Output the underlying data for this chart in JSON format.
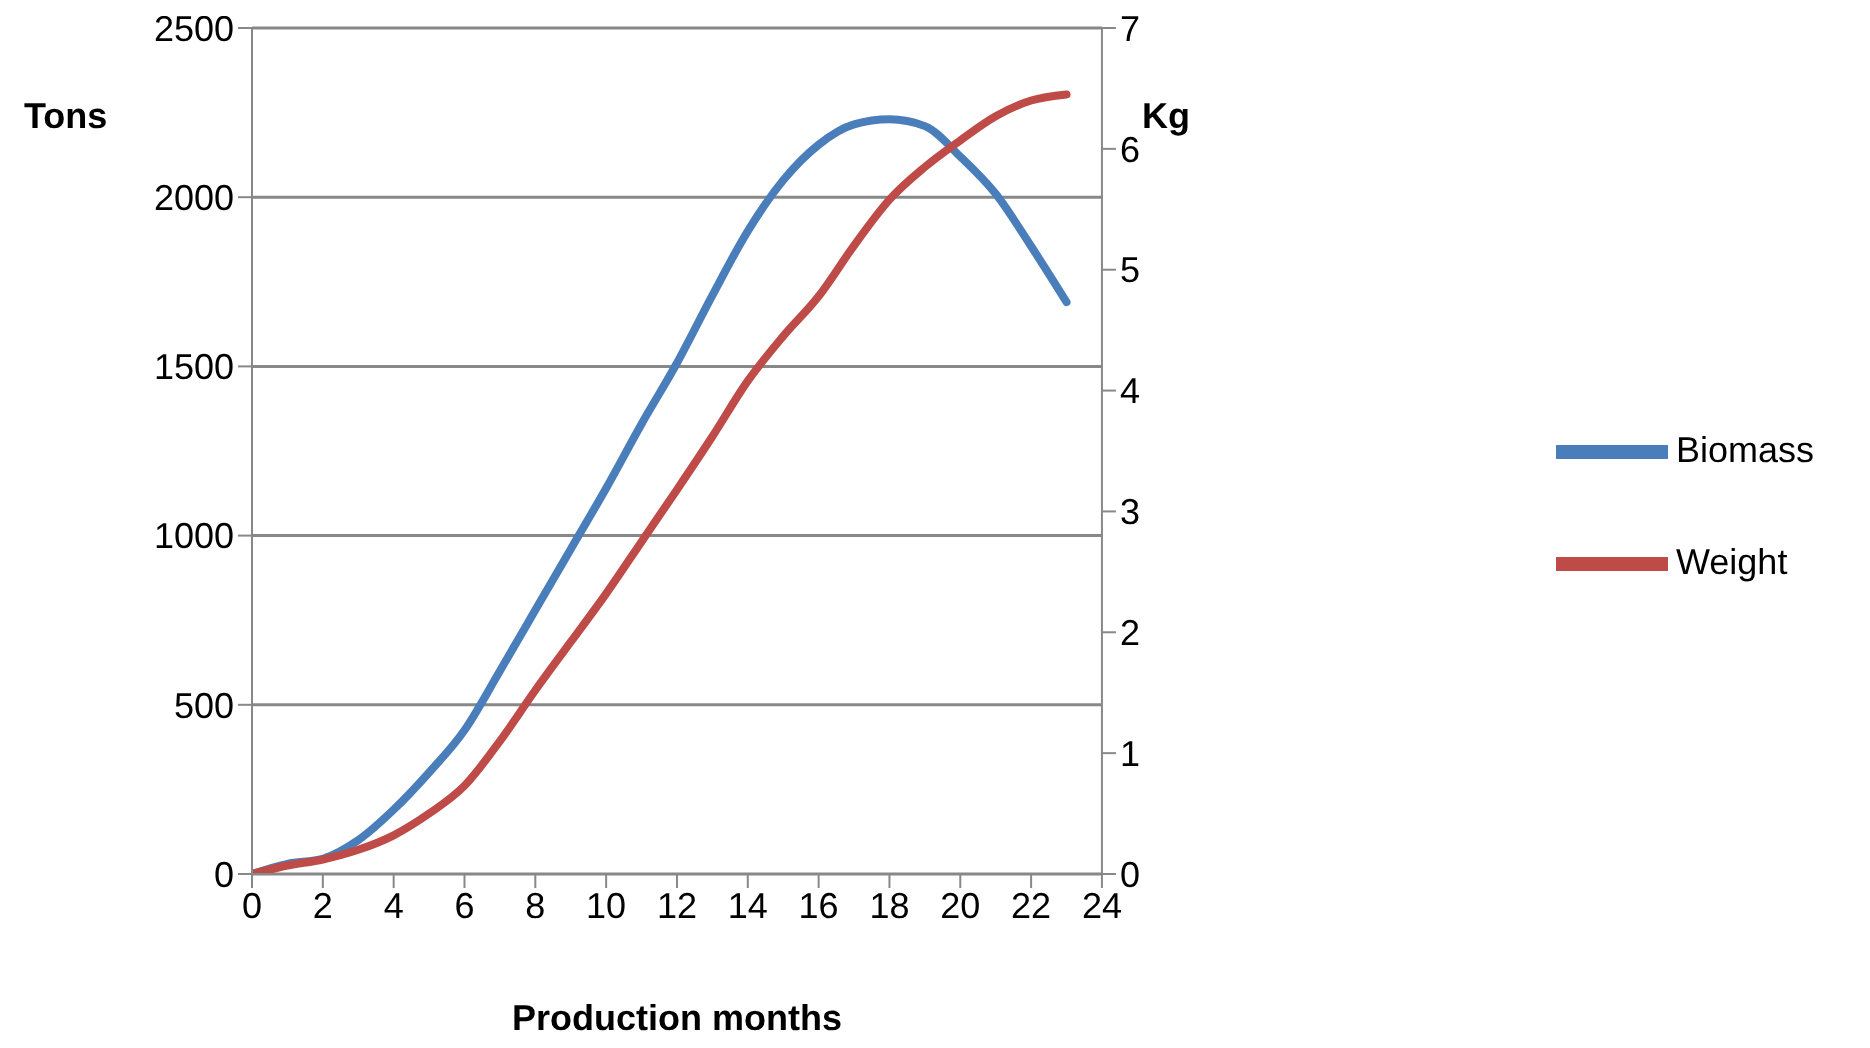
{
  "chart_data": {
    "type": "line",
    "xlabel": "Production months",
    "ylabel": "Tons",
    "y2label": "Kg",
    "x": [
      0,
      1,
      2,
      3,
      4,
      5,
      6,
      7,
      8,
      9,
      10,
      11,
      12,
      13,
      14,
      15,
      16,
      17,
      18,
      19,
      20,
      21,
      22,
      23
    ],
    "series": [
      {
        "name": "Biomass",
        "color": "#4a7ebb",
        "values": [
          0,
          30,
          45,
          100,
          190,
          300,
          425,
          600,
          780,
          960,
          1140,
          1330,
          1510,
          1710,
          1900,
          2050,
          2155,
          2215,
          2230,
          2210,
          2120,
          2010,
          1855,
          1690
        ]
      },
      {
        "name": "Weight",
        "color": "#be4b48",
        "axis": "y2",
        "values": [
          0,
          0.07,
          0.12,
          0.2,
          0.32,
          0.5,
          0.73,
          1.1,
          1.52,
          1.92,
          2.32,
          2.75,
          3.18,
          3.62,
          4.08,
          4.45,
          4.78,
          5.2,
          5.58,
          5.85,
          6.07,
          6.27,
          6.4,
          6.45
        ]
      }
    ],
    "xlim": [
      0,
      24
    ],
    "xticks": [
      0,
      2,
      4,
      6,
      8,
      10,
      12,
      14,
      16,
      18,
      20,
      22,
      24
    ],
    "ylim": [
      0,
      2500
    ],
    "yticks": [
      0,
      500,
      1000,
      1500,
      2000,
      2500
    ],
    "y2lim": [
      0,
      7
    ],
    "y2ticks": [
      0,
      1,
      2,
      3,
      4,
      5,
      6,
      7
    ],
    "grid": "y",
    "legend": "right",
    "marker": "none",
    "line_style": "solid"
  }
}
